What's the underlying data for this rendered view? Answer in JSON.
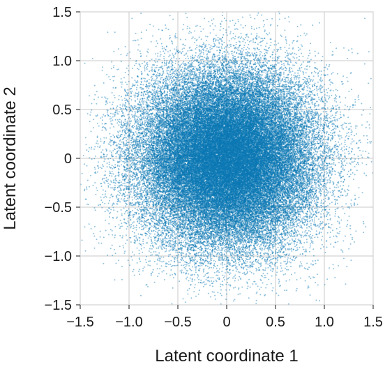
{
  "chart_data": {
    "type": "scatter",
    "xlabel": "Latent coordinate 1",
    "ylabel": "Latent coordinate 2",
    "xlim": [
      -1.5,
      1.5
    ],
    "ylim": [
      -1.5,
      1.5
    ],
    "xticks": [
      -1.5,
      -1.0,
      -0.5,
      0,
      0.5,
      1.0,
      1.5
    ],
    "yticks": [
      -1.5,
      -1.0,
      -0.5,
      0,
      0.5,
      1.0,
      1.5
    ],
    "xtick_labels": [
      "−1.5",
      "−1.0",
      "−0.5",
      "0",
      "0.5",
      "1.0",
      "1.5"
    ],
    "ytick_labels": [
      "−1.5",
      "−1.0",
      "−0.5",
      "0",
      "0.5",
      "1.0",
      "1.5"
    ],
    "grid": true,
    "series": [
      {
        "color": "#0a78b4",
        "distribution": "bivariate normal",
        "center": [
          0,
          0
        ],
        "std": [
          0.45,
          0.45
        ],
        "approx_points": 60000
      }
    ]
  }
}
